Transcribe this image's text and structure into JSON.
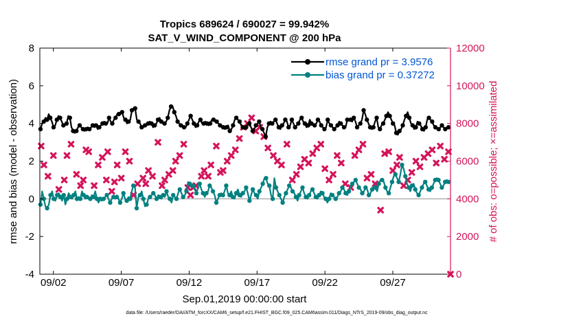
{
  "chart_data": {
    "type": "line",
    "title": "Tropics 689624 / 690027 = 99.942%",
    "subtitle": "SAT_V_WIND_COMPONENT @ 200 hPa",
    "xlabel": "Sep.01,2019 00:00:00 start",
    "ylabel_left": "rmse and bias (model - observation)",
    "ylabel_right": "# of obs: o=possible; ×=assimilated",
    "footer": "data file: /Users/raeder/DAI/ATM_forcXX/CAM6_setup/f.e21.FHIST_BGC.f09_025.CAM6assim.011/Diags_NTrS_2019-09/obs_diag_output.nc",
    "x_ticks": [
      "09/02",
      "09/07",
      "09/12",
      "09/17",
      "09/22",
      "09/27"
    ],
    "y_left_ticks": [
      "8",
      "6",
      "4",
      "2",
      "0",
      "-2",
      "-4"
    ],
    "y_right_ticks": [
      "12000",
      "10000",
      "8000",
      "6000",
      "4000",
      "2000",
      "0"
    ],
    "ylim_left": [
      -4,
      8
    ],
    "ylim_right": [
      0,
      12000
    ],
    "xlim": [
      1,
      31.25
    ],
    "colors": {
      "rmse": "#000000",
      "bias": "#008080",
      "obs": "#d4145a",
      "zero": "#999999",
      "legend_text": "#0055d4"
    },
    "series": [
      {
        "name": "rmse grand pr = 3.9576",
        "key": "rmse",
        "values": [
          3.7,
          4.0,
          4.1,
          4.3,
          4.2,
          4.5,
          4.3,
          4.1,
          3.8,
          3.9,
          4.2,
          4.4,
          4.3,
          4.1,
          3.9,
          3.9,
          4.0,
          4.4,
          4.3,
          3.8,
          3.6,
          3.5,
          3.6,
          3.8,
          3.9,
          3.8,
          3.7,
          3.6,
          3.7,
          3.8,
          3.7,
          3.8,
          3.9,
          3.8,
          3.9,
          3.7,
          3.8,
          3.9,
          4.0,
          4.1,
          4.0,
          4.0,
          4.3,
          4.1,
          4.0,
          4.2,
          4.3,
          4.5,
          4.5,
          4.5,
          4.6,
          4.3,
          4.2,
          4.0,
          4.1,
          4.2,
          4.7,
          4.8,
          4.8,
          4.2,
          4.1,
          4.0,
          3.8,
          3.8,
          3.9,
          3.9,
          4.0,
          4.1,
          4.0,
          3.8,
          3.9,
          4.0,
          4.2,
          4.3,
          4.1,
          4.0,
          4.0,
          4.1,
          4.3,
          4.7,
          4.9,
          4.9,
          4.6,
          4.4,
          4.1,
          4.0,
          3.9,
          3.9,
          3.8,
          3.8,
          4.0,
          4.2,
          4.4,
          4.2,
          4.0,
          3.8,
          3.9,
          4.1,
          4.2,
          4.0,
          4.0,
          4.1,
          4.0,
          3.9,
          4.0,
          4.2,
          4.2,
          4.1,
          4.1,
          4.0,
          3.9,
          3.8,
          3.8,
          3.7,
          3.8,
          3.9,
          3.6,
          3.7,
          3.9,
          4.2,
          4.3,
          4.2,
          4.1,
          3.9,
          3.8,
          3.7,
          3.8,
          4.0,
          4.0,
          3.8,
          3.6,
          3.7,
          3.9,
          4.0,
          4.1,
          3.8,
          3.7,
          3.5,
          3.3,
          3.8,
          4.0,
          4.1,
          4.0,
          4.1,
          4.2,
          4.0,
          3.8,
          3.7,
          3.9,
          4.0,
          4.2,
          4.1,
          3.8,
          3.9,
          4.2,
          4.0,
          3.8,
          3.9,
          4.0,
          4.2,
          4.3,
          4.1,
          4.0,
          3.8,
          3.9,
          4.2,
          4.0,
          3.9,
          3.9,
          4.0,
          4.2,
          4.1,
          3.9,
          3.8,
          3.7,
          3.8,
          4.2,
          4.0,
          3.9,
          3.8,
          3.7,
          3.8,
          3.9,
          4.1,
          4.0,
          3.9,
          3.8,
          3.8,
          4.2,
          4.2,
          4.2,
          4.1,
          4.3,
          4.1,
          3.8,
          3.9,
          4.0,
          4.2,
          4.7,
          4.5,
          4.2,
          4.0,
          3.8,
          3.7,
          3.8,
          4.1,
          4.3,
          3.8,
          3.7,
          3.9,
          4.0,
          4.2,
          4.4,
          4.6,
          4.4,
          4.2,
          4.0,
          3.9,
          3.5,
          3.4,
          3.6,
          3.7,
          3.9,
          4.2,
          4.4,
          4.6,
          4.3,
          4.0,
          3.9,
          3.7,
          3.8,
          4.1,
          4.0,
          3.9,
          3.7,
          3.6,
          3.8,
          4.2,
          4.3,
          4.2,
          4.1,
          3.9,
          3.8,
          3.7,
          3.7,
          3.8,
          3.9,
          3.8,
          3.7,
          3.8,
          3.8
        ]
      },
      {
        "name": "bias grand pr = 0.37272",
        "key": "bias",
        "values": [
          -0.3,
          0.4,
          0.0,
          -0.4,
          -0.5,
          -0.3,
          0.2,
          0.4,
          0.0,
          -0.1,
          0.2,
          0.3,
          0.1,
          -0.1,
          0.2,
          -0.3,
          0.0,
          0.3,
          0.1,
          0.0,
          0.2,
          0.4,
          0.0,
          0.1,
          0.0,
          0.4,
          0.2,
          0.0,
          0.1,
          0.0,
          0.0,
          0.2,
          0.1,
          0.4,
          0.0,
          -0.2,
          0.0,
          -0.1,
          0.0,
          0.1,
          0.2,
          0.0,
          -0.2,
          0.0,
          0.1,
          0.0,
          0.1,
          0.0,
          -0.2,
          0.0,
          0.3,
          0.0,
          -0.1,
          0.1,
          0.0,
          0.4,
          0.7,
          0.6,
          -0.5,
          0.1,
          0.2,
          0.4,
          0.0,
          -0.4,
          -0.3,
          0.0,
          0.1,
          0.2,
          0.3,
          0.2,
          0.0,
          0.2,
          0.1,
          0.0,
          0.2,
          0.1,
          0.4,
          0.1,
          0.0,
          -0.2,
          0.2,
          0.1,
          0.0,
          0.3,
          0.5,
          0.3,
          0.1,
          0.2,
          0.4,
          0.9,
          0.8,
          0.6,
          0.7,
          0.5,
          0.3,
          0.6,
          0.8,
          0.5,
          0.3,
          0.1,
          0.3,
          0.4,
          0.7,
          0.6,
          0.4,
          0.2,
          -0.2,
          0.0,
          0.2,
          0.3,
          0.2,
          0.4,
          0.7,
          0.3,
          0.2,
          0.4,
          0.1,
          0.0,
          0.3,
          0.5,
          0.2,
          0.1,
          0.3,
          0.4,
          0.6,
          0.3,
          -0.1,
          0.2,
          0.5,
          0.3,
          0.2,
          0.0,
          0.4,
          0.6,
          0.8,
          1.1,
          1.1,
          0.8,
          0.7,
          0.2,
          0.0,
          1.1,
          0.6,
          0.4,
          0.2,
          0.0,
          -0.2,
          0.1,
          0.3,
          0.5,
          0.7,
          0.6,
          0.4,
          0.3,
          0.1,
          -0.1,
          0.2,
          0.4,
          0.6,
          0.3,
          0.1,
          0.0,
          0.2,
          0.4,
          0.5,
          0.3,
          0.1,
          0.0,
          0.2,
          0.4,
          0.3,
          0.1,
          0.0,
          -0.2,
          0.0,
          0.3,
          0.2,
          0.1,
          0.0,
          0.1,
          0.3,
          0.4,
          0.6,
          0.5,
          0.3,
          0.2,
          0.4,
          0.7,
          0.8,
          0.9,
          1.0,
          0.8,
          0.6,
          0.5,
          0.3,
          0.4,
          0.6,
          0.5,
          0.2,
          0.3,
          0.5,
          0.7,
          0.6,
          0.4,
          0.8,
          1.0,
          1.0,
          0.9,
          0.6,
          0.4,
          0.3,
          0.6,
          0.9,
          1.2,
          1.3,
          1.1,
          0.9,
          1.3,
          1.8,
          1.6,
          1.2,
          0.8,
          0.6,
          0.4,
          0.7,
          0.8,
          0.5,
          0.3,
          0.2,
          0.4,
          0.6,
          0.8,
          0.9,
          0.7,
          0.5,
          0.4,
          0.6,
          0.8,
          1.0,
          1.1,
          1.0,
          0.8,
          0.6,
          0.7,
          0.9,
          1.0,
          0.9
        ]
      }
    ],
    "obs_points": [
      [
        1.1,
        6800
      ],
      [
        1.3,
        5800
      ],
      [
        1.6,
        5200
      ],
      [
        2.0,
        6300
      ],
      [
        2.4,
        4500
      ],
      [
        2.8,
        5000
      ],
      [
        3.0,
        6300
      ],
      [
        3.3,
        6900
      ],
      [
        3.7,
        5300
      ],
      [
        4.0,
        4700
      ],
      [
        4.2,
        5000
      ],
      [
        4.4,
        6600
      ],
      [
        4.6,
        6500
      ],
      [
        5.0,
        4700
      ],
      [
        5.3,
        5800
      ],
      [
        5.6,
        6200
      ],
      [
        5.9,
        5000
      ],
      [
        6.0,
        6500
      ],
      [
        6.3,
        4400
      ],
      [
        6.5,
        4900
      ],
      [
        6.7,
        5800
      ],
      [
        7.0,
        5100
      ],
      [
        7.3,
        6500
      ],
      [
        7.6,
        6000
      ],
      [
        7.9,
        4200
      ],
      [
        8.2,
        4800
      ],
      [
        8.6,
        5100
      ],
      [
        8.8,
        4800
      ],
      [
        9.0,
        5500
      ],
      [
        9.3,
        5200
      ],
      [
        9.7,
        7000
      ],
      [
        10.0,
        4700
      ],
      [
        10.2,
        5000
      ],
      [
        10.5,
        5300
      ],
      [
        10.8,
        5500
      ],
      [
        11.0,
        6000
      ],
      [
        11.3,
        6300
      ],
      [
        11.6,
        6900
      ],
      [
        11.9,
        4600
      ],
      [
        12.1,
        4200
      ],
      [
        12.3,
        4600
      ],
      [
        12.5,
        4700
      ],
      [
        12.9,
        5200
      ],
      [
        13.1,
        5500
      ],
      [
        13.4,
        5200
      ],
      [
        13.6,
        5800
      ],
      [
        14.0,
        6800
      ],
      [
        14.3,
        5400
      ],
      [
        14.5,
        5500
      ],
      [
        14.8,
        6000
      ],
      [
        15.1,
        6300
      ],
      [
        15.4,
        6600
      ],
      [
        15.7,
        7200
      ],
      [
        16.0,
        7800
      ],
      [
        16.3,
        8000
      ],
      [
        16.6,
        8300
      ],
      [
        16.9,
        7600
      ],
      [
        17.2,
        7800
      ],
      [
        17.5,
        7300
      ],
      [
        17.8,
        6700
      ],
      [
        18.2,
        6300
      ],
      [
        18.5,
        6000
      ],
      [
        18.8,
        5800
      ],
      [
        19.2,
        6900
      ],
      [
        19.6,
        5000
      ],
      [
        19.9,
        5300
      ],
      [
        20.2,
        5700
      ],
      [
        20.5,
        6100
      ],
      [
        20.8,
        5900
      ],
      [
        21.1,
        6400
      ],
      [
        21.4,
        6700
      ],
      [
        21.7,
        6900
      ],
      [
        22.0,
        5600
      ],
      [
        22.3,
        5000
      ],
      [
        22.6,
        5300
      ],
      [
        22.9,
        6300
      ],
      [
        23.2,
        5900
      ],
      [
        23.5,
        4800
      ],
      [
        23.9,
        4600
      ],
      [
        24.2,
        6300
      ],
      [
        24.5,
        6600
      ],
      [
        24.8,
        6900
      ],
      [
        25.1,
        5100
      ],
      [
        25.4,
        5300
      ],
      [
        25.7,
        4800
      ],
      [
        26.1,
        3400
      ],
      [
        26.4,
        6400
      ],
      [
        26.7,
        6500
      ],
      [
        27.0,
        5500
      ],
      [
        27.3,
        5800
      ],
      [
        27.5,
        6200
      ],
      [
        27.8,
        4700
      ],
      [
        28.1,
        5000
      ],
      [
        28.4,
        5400
      ],
      [
        28.7,
        6000
      ],
      [
        29.0,
        5700
      ],
      [
        29.3,
        6200
      ],
      [
        29.6,
        6400
      ],
      [
        29.9,
        6600
      ],
      [
        30.2,
        5900
      ],
      [
        30.5,
        6800
      ],
      [
        30.8,
        6100
      ],
      [
        31.1,
        6500
      ]
    ],
    "obs_right_edge_value": 0
  }
}
